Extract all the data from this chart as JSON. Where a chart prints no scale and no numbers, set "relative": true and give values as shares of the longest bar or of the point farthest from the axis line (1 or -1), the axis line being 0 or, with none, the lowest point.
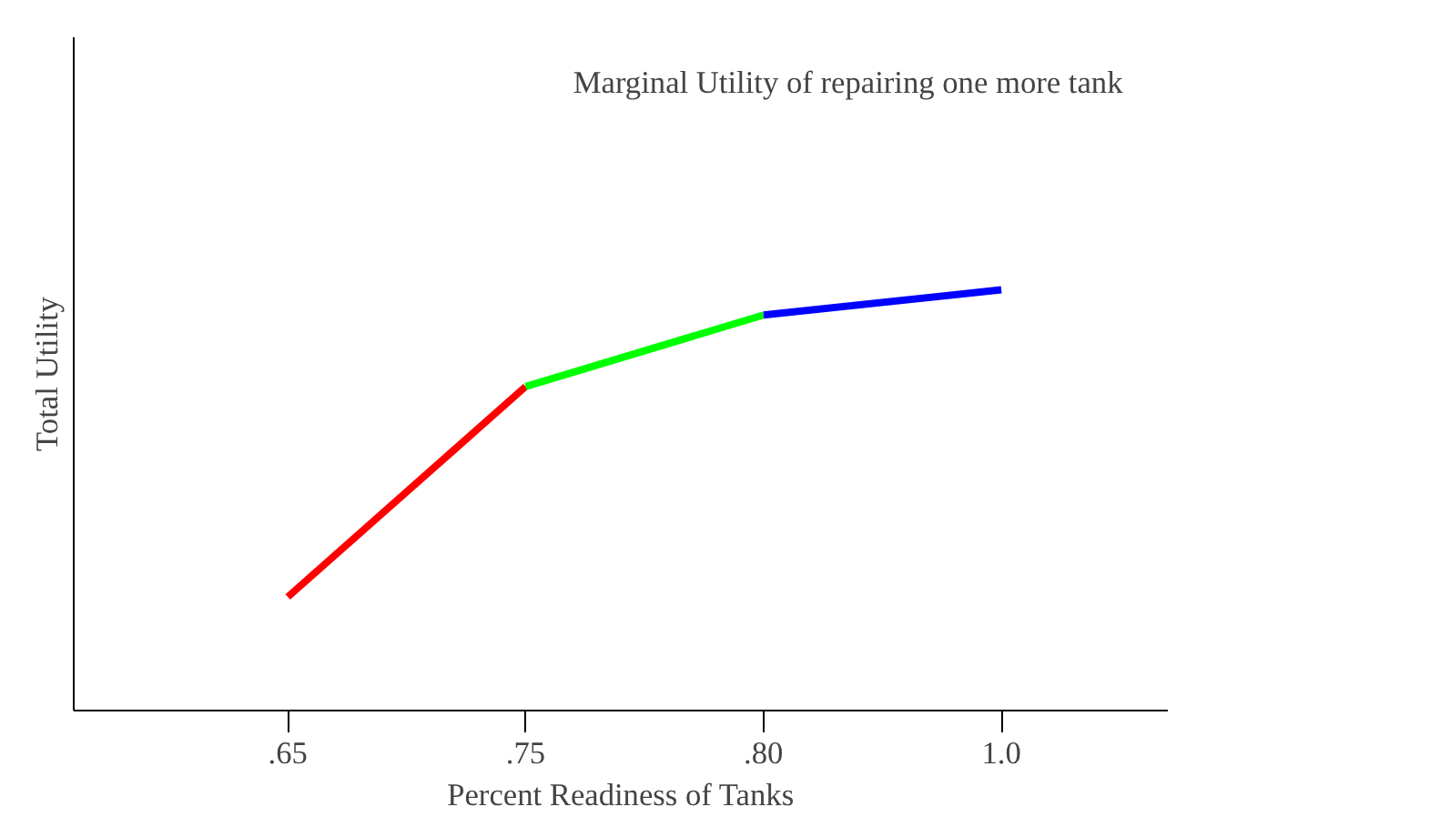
{
  "chart_data": {
    "type": "line",
    "relative": true,
    "categories": [
      ".65",
      ".75",
      ".80",
      "1.0"
    ],
    "xlabel": "Percent Readiness of Tanks",
    "ylabel": "Total Utility",
    "annotations": [
      "Marginal Utility of repairing one more tank"
    ],
    "tick_labels": "x",
    "grid": false,
    "series": [
      {
        "color": "#ff0000",
        "values": [
          0.27,
          0.77,
          null,
          null
        ]
      },
      {
        "color": "#00ff00",
        "values": [
          null,
          0.77,
          0.94,
          null
        ]
      },
      {
        "color": "#0000ff",
        "values": [
          null,
          null,
          0.94,
          1.0
        ]
      }
    ]
  }
}
